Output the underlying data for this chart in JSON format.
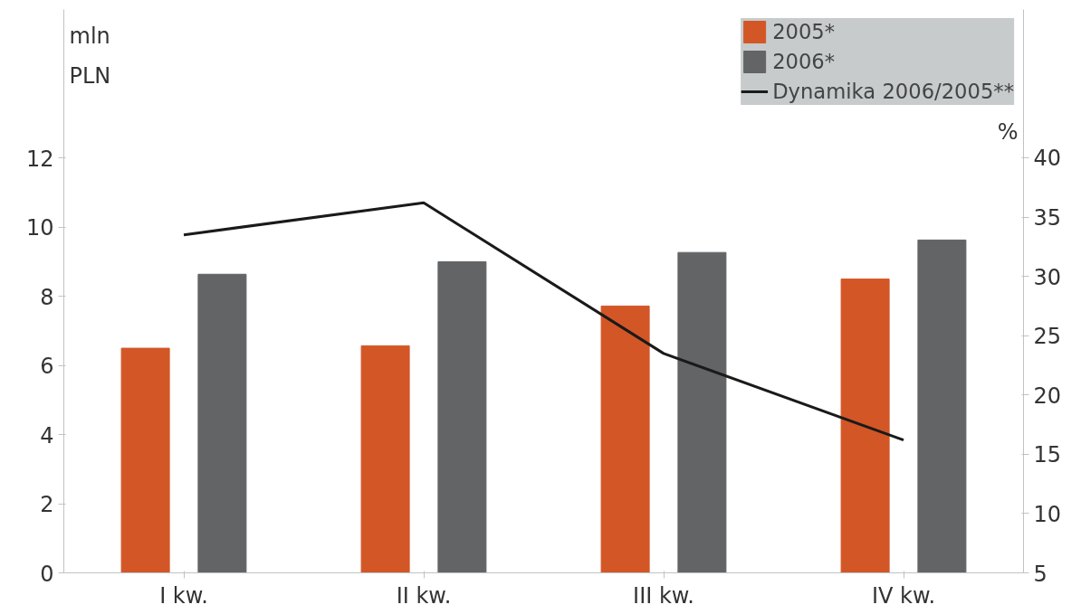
{
  "chart_data": {
    "type": "bar",
    "categories": [
      "I kw.",
      "II kw.",
      "III kw.",
      "IV kw."
    ],
    "ylabel": "mln PLN",
    "y2label": "%",
    "ylim": [
      0,
      16.3
    ],
    "yticks": [
      0,
      2,
      4,
      6,
      8,
      10,
      12
    ],
    "y2lim": [
      5,
      52.5
    ],
    "y2ticks": [
      5,
      10,
      15,
      20,
      25,
      30,
      35,
      40
    ],
    "series": [
      {
        "name": "2005*",
        "color": "#d35627",
        "values": [
          6.5,
          6.57,
          7.72,
          8.5
        ]
      },
      {
        "name": "2006*",
        "color": "#636466",
        "values": [
          8.64,
          9.0,
          9.27,
          9.63
        ]
      },
      {
        "name": "Dynamika 2006/2005**",
        "type": "line",
        "axis": "y2",
        "color": "#1a1a1a",
        "values": [
          33.5,
          36.2,
          23.5,
          16.2
        ]
      }
    ],
    "legend": "top right",
    "grid": false
  }
}
